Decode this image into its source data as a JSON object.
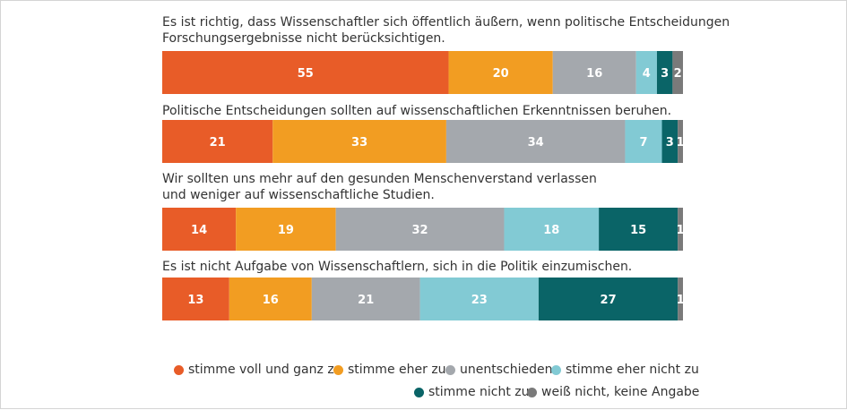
{
  "colors": {
    "voll": "#e85c28",
    "eher": "#f29d22",
    "unent": "#a4a8ad",
    "eher_nicht": "#82cad4",
    "nicht": "#0a6467",
    "weiss": "#7a7a7a"
  },
  "chart_data": {
    "type": "bar",
    "orientation": "horizontal",
    "stacked": true,
    "unit": "percent",
    "xlim": [
      0,
      100
    ],
    "legend": {
      "position": "bottom-right",
      "entries": [
        "stimme voll und ganz zu",
        "stimme eher zu",
        "unentschieden",
        "stimme eher nicht zu",
        "stimme nicht zu",
        "weiß nicht, keine Angabe"
      ]
    },
    "categories": [
      "Es ist richtig, dass Wissenschaftler sich öffentlich äußern, wenn politische Entscheidungen\nForschungsergebnisse nicht berücksichtigen.",
      "Politische Entscheidungen sollten auf wissenschaftlichen Erkenntnissen beruhen.",
      "Wir sollten uns mehr auf den gesunden Menschenverstand verlassen\nund weniger auf wissenschaftliche Studien.",
      "Es ist nicht Aufgabe von Wissenschaftlern, sich in die Politik einzumischen."
    ],
    "series": [
      {
        "name": "stimme voll und ganz zu",
        "color_key": "voll",
        "values": [
          55,
          21,
          14,
          13
        ]
      },
      {
        "name": "stimme eher zu",
        "color_key": "eher",
        "values": [
          20,
          33,
          19,
          16
        ]
      },
      {
        "name": "unentschieden",
        "color_key": "unent",
        "values": [
          16,
          34,
          32,
          21
        ]
      },
      {
        "name": "stimme eher nicht zu",
        "color_key": "eher_nicht",
        "values": [
          4,
          7,
          18,
          23
        ]
      },
      {
        "name": "stimme nicht zu",
        "color_key": "nicht",
        "values": [
          3,
          3,
          15,
          27
        ]
      },
      {
        "name": "weiß nicht, keine Angabe",
        "color_key": "weiss",
        "values": [
          2,
          1,
          1,
          1
        ]
      }
    ]
  }
}
